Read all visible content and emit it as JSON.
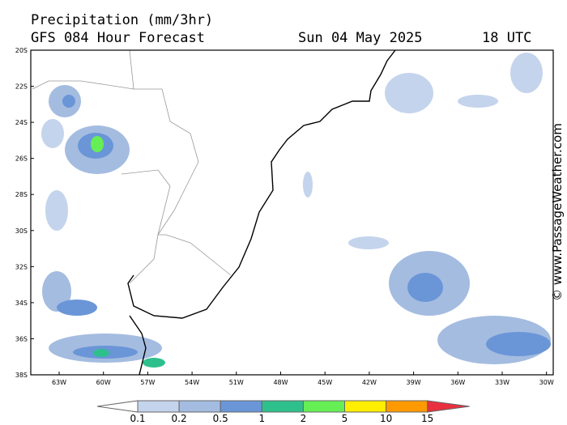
{
  "header": {
    "title": "Precipitation (mm/3hr)",
    "model": "GFS 084 Hour Forecast",
    "date": "Sun 04 May 2025",
    "time": "18 UTC"
  },
  "map": {
    "lat_labels": [
      "20S",
      "22S",
      "24S",
      "26S",
      "28S",
      "30S",
      "32S",
      "34S",
      "36S",
      "38S"
    ],
    "lon_labels": [
      "63W",
      "60W",
      "57W",
      "54W",
      "51W",
      "48W",
      "45W",
      "42W",
      "39W",
      "36W",
      "33W",
      "30W"
    ]
  },
  "legend": {
    "labels": [
      "0.1",
      "0.2",
      "0.5",
      "1",
      "2",
      "5",
      "10",
      "15"
    ]
  },
  "watermark": "© www.PassageWeather.com"
}
